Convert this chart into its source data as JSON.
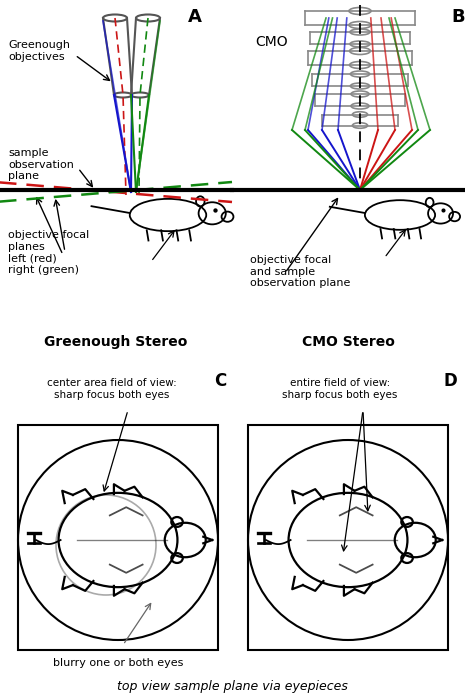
{
  "fig_width": 4.65,
  "fig_height": 7.0,
  "bg_color": "#ffffff",
  "label_A": "A",
  "label_B": "B",
  "label_C": "C",
  "label_D": "D",
  "text_greenough_objectives": "Greenough\nobjectives",
  "text_sample_obs": "sample\nobservation\nplane",
  "text_focal_planes": "objective focal\nplanes\nleft (red)\nright (green)",
  "text_CMO": "CMO",
  "text_focal_sample": "objective focal\nand sample\nobservation plane",
  "text_greenough_stereo": "Greenough Stereo",
  "text_cmo_stereo": "CMO Stereo",
  "text_center_area": "center area field of view:\nsharp focus both eyes",
  "text_entire_fov": "entire field of view:\nsharp focus both eyes",
  "text_blurry": "blurry one or both eyes",
  "text_top_view": "top view sample plane via eyepieces",
  "color_blue": "#1515cc",
  "color_red": "#cc1515",
  "color_green": "#118811",
  "color_gray": "#888888",
  "color_black": "#000000",
  "color_light_gray": "#aaaaaa"
}
